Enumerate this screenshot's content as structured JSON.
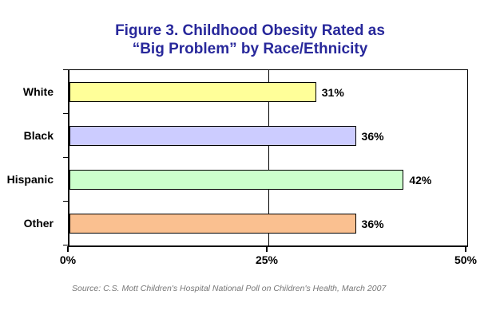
{
  "figure": {
    "title_line1": "Figure 3. Childhood Obesity Rated as",
    "title_line2": "“Big Problem” by Race/Ethnicity",
    "title_color": "#28289B",
    "source": "Source: C.S. Mott Children's Hospital National Poll on Children's Health, March 2007",
    "source_color": "#777777"
  },
  "chart_data": {
    "type": "bar",
    "orientation": "horizontal",
    "title": "Figure 3. Childhood Obesity Rated as “Big Problem” by Race/Ethnicity",
    "categories": [
      "White",
      "Black",
      "Hispanic",
      "Other"
    ],
    "values": [
      31,
      36,
      42,
      36
    ],
    "value_labels": [
      "31%",
      "36%",
      "42%",
      "36%"
    ],
    "bar_colors": [
      "#FFFF99",
      "#CCCCFF",
      "#CCFFCC",
      "#FAC090"
    ],
    "xlim": [
      0,
      50
    ],
    "x_tick_values": [
      0,
      25,
      50
    ],
    "x_tick_labels": [
      "0%",
      "25%",
      "50%"
    ],
    "xlabel": "",
    "ylabel": "",
    "grid": "vertical gridlines at x ticks",
    "legend": "none"
  }
}
